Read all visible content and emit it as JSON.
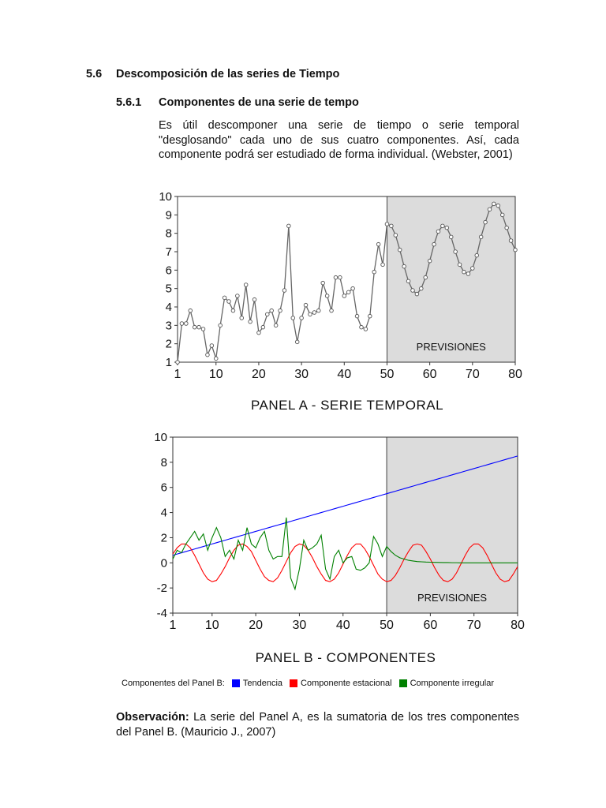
{
  "section": {
    "number": "5.6",
    "title": "Descomposición de las series de Tiempo"
  },
  "subsection": {
    "number": "5.6.1",
    "title": "Componentes de una serie de tempo"
  },
  "intro_text": "Es útil descomponer una serie de tiempo o serie temporal \"desglosando\" cada uno de sus cuatro componentes. Así, cada componente podrá ser estudiado de forma individual. (Webster, 2001)",
  "legend": {
    "prefix": "Componentes del Panel B:",
    "items": [
      {
        "label": "Tendencia",
        "color": "#0000ff"
      },
      {
        "label": "Componente estacional",
        "color": "#ff0000"
      },
      {
        "label": "Componente irregular",
        "color": "#008000"
      }
    ]
  },
  "observation": {
    "label": "Observación:",
    "text": " La serie del Panel A, es la sumatoria de los tres componentes del Panel B. (Mauricio J., 2007)"
  },
  "colors": {
    "serie": "#666666",
    "marker": "#555555",
    "shade": "#dcdcdc",
    "trend": "#0000ff",
    "seasonal": "#ff0000",
    "irregular": "#008000"
  },
  "chart_data": [
    {
      "type": "line",
      "title": "PANEL A - SERIE TEMPORAL",
      "shade_label": "PREVISIONES",
      "shade_range": [
        50,
        80
      ],
      "xlim": [
        1,
        80
      ],
      "ylim": [
        1,
        10
      ],
      "xticks": [
        1,
        10,
        20,
        30,
        40,
        50,
        60,
        70,
        80
      ],
      "yticks": [
        1,
        2,
        3,
        4,
        5,
        6,
        7,
        8,
        9,
        10
      ],
      "grid": false,
      "x_start": 1,
      "series": [
        {
          "values": [
            1.0,
            3.1,
            3.1,
            3.8,
            2.9,
            2.9,
            2.8,
            1.4,
            1.9,
            1.2,
            3.0,
            4.5,
            4.3,
            3.8,
            4.6,
            3.4,
            5.2,
            3.2,
            4.4,
            2.6,
            2.9,
            3.6,
            3.8,
            3.0,
            3.8,
            4.9,
            8.4,
            3.4,
            2.1,
            3.4,
            4.1,
            3.6,
            3.7,
            3.8,
            5.3,
            4.6,
            3.8,
            5.6,
            5.6,
            4.6,
            4.8,
            5.0,
            3.5,
            2.9,
            2.8,
            3.5,
            5.9,
            7.4,
            6.3,
            8.5,
            8.4,
            7.9,
            7.1,
            6.2,
            5.4,
            4.9,
            4.7,
            5.0,
            5.6,
            6.5,
            7.4,
            8.1,
            8.4,
            8.3,
            7.8,
            7.0,
            6.3,
            5.9,
            5.8,
            6.1,
            6.8,
            7.8,
            8.6,
            9.3,
            9.6,
            9.5,
            9.0,
            8.3,
            7.6,
            7.1
          ]
        }
      ]
    },
    {
      "type": "line",
      "title": "PANEL B - COMPONENTES",
      "shade_label": "PREVISIONES",
      "shade_range": [
        50,
        80
      ],
      "xlim": [
        1,
        80
      ],
      "ylim": [
        -4,
        10
      ],
      "xticks": [
        1,
        10,
        20,
        30,
        40,
        50,
        60,
        70,
        80
      ],
      "yticks": [
        -4,
        -2,
        0,
        2,
        4,
        6,
        8,
        10
      ],
      "grid": false,
      "x_start": 1,
      "series": [
        {
          "key": "trend",
          "values": [
            0.6,
            0.7,
            0.8,
            0.9,
            1.0,
            1.1,
            1.2,
            1.3,
            1.4,
            1.5,
            1.6,
            1.7,
            1.8,
            1.9,
            2.0,
            2.1,
            2.2,
            2.3,
            2.4,
            2.5,
            2.6,
            2.7,
            2.8,
            2.9,
            3.0,
            3.1,
            3.2,
            3.3,
            3.4,
            3.5,
            3.6,
            3.7,
            3.8,
            3.9,
            4.0,
            4.1,
            4.2,
            4.3,
            4.4,
            4.5,
            4.6,
            4.7,
            4.8,
            4.9,
            5.0,
            5.1,
            5.2,
            5.3,
            5.4,
            5.5,
            5.6,
            5.7,
            5.8,
            5.9,
            6.0,
            6.1,
            6.2,
            6.3,
            6.4,
            6.5,
            6.6,
            6.7,
            6.8,
            6.9,
            7.0,
            7.1,
            7.2,
            7.3,
            7.4,
            7.5,
            7.6,
            7.7,
            7.8,
            7.9,
            8.0,
            8.1,
            8.2,
            8.3,
            8.4,
            8.5
          ]
        },
        {
          "key": "seasonal",
          "values": [
            0.7,
            1.2,
            1.5,
            1.5,
            1.2,
            0.6,
            -0.1,
            -0.8,
            -1.3,
            -1.5,
            -1.4,
            -0.9,
            -0.3,
            0.4,
            1.0,
            1.4,
            1.5,
            1.3,
            0.9,
            0.2,
            -0.5,
            -1.1,
            -1.4,
            -1.5,
            -1.2,
            -0.6,
            0.1,
            0.8,
            1.3,
            1.5,
            1.4,
            1.0,
            0.4,
            -0.3,
            -0.9,
            -1.4,
            -1.5,
            -1.3,
            -0.8,
            -0.1,
            0.6,
            1.2,
            1.5,
            1.5,
            1.1,
            0.5,
            -0.2,
            -0.9,
            -1.3,
            -1.5,
            -1.4,
            -1.0,
            -0.4,
            0.3,
            0.9,
            1.4,
            1.5,
            1.4,
            0.9,
            0.3,
            -0.4,
            -1.0,
            -1.4,
            -1.5,
            -1.3,
            -0.8,
            -0.1,
            0.6,
            1.2,
            1.5,
            1.5,
            1.2,
            0.6,
            -0.1,
            -0.8,
            -1.3,
            -1.5,
            -1.4,
            -0.9,
            -0.3
          ]
        },
        {
          "key": "irregular",
          "values": [
            0.3,
            1.0,
            0.8,
            1.5,
            2.0,
            2.5,
            1.8,
            2.3,
            1.0,
            2.0,
            2.8,
            2.0,
            0.5,
            1.0,
            0.3,
            1.8,
            1.0,
            2.8,
            1.5,
            1.2,
            2.0,
            2.5,
            1.0,
            0.3,
            0.5,
            0.5,
            3.6,
            -1.2,
            -2.1,
            -0.5,
            1.8,
            1.0,
            1.2,
            1.5,
            2.2,
            -0.5,
            -1.3,
            0.5,
            1.0,
            0.0,
            0.4,
            0.5,
            -0.5,
            -0.6,
            -0.4,
            0.0,
            2.1,
            1.5,
            0.5,
            1.3,
            0.9,
            0.6,
            0.4,
            0.3,
            0.2,
            0.15,
            0.1,
            0.08,
            0.06,
            0.05,
            0.04,
            0.03,
            0.02,
            0.02,
            0.01,
            0.01,
            0.0,
            0.0,
            0.0,
            0.0,
            0.0,
            0.0,
            0.0,
            0.0,
            0.0,
            0.0,
            0.0,
            0.0,
            0.0,
            0.0
          ]
        }
      ]
    }
  ]
}
